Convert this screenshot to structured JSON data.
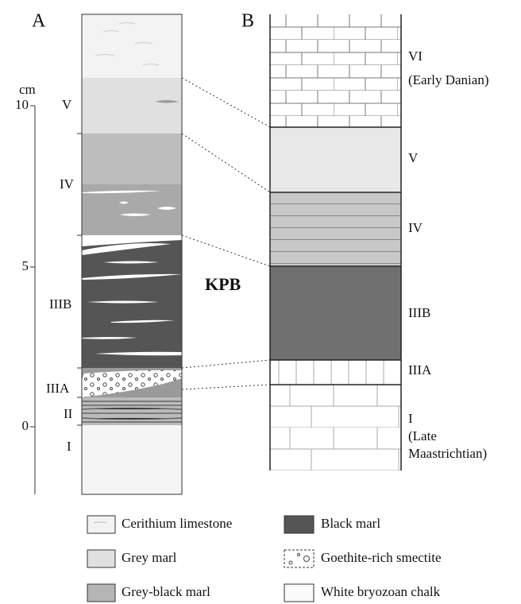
{
  "panels": {
    "a": "A",
    "b": "B"
  },
  "scale": {
    "unit": "cm",
    "ticks": [
      "10",
      "5",
      "0"
    ]
  },
  "column_a": {
    "labels": [
      "V",
      "IV",
      "IIIB",
      "IIIA",
      "II",
      "I"
    ]
  },
  "column_b": {
    "labels": [
      "VI",
      "(Early Danian)",
      "V",
      "IV",
      "IIIB",
      "IIIA",
      "I",
      "(Late",
      "Maastrichtian)"
    ]
  },
  "boundary": "KPB",
  "legend": [
    "Cerithium limestone",
    "Black marl",
    "Grey marl",
    "Goethite-rich smectite",
    "Grey-black marl",
    "White bryozoan chalk"
  ]
}
